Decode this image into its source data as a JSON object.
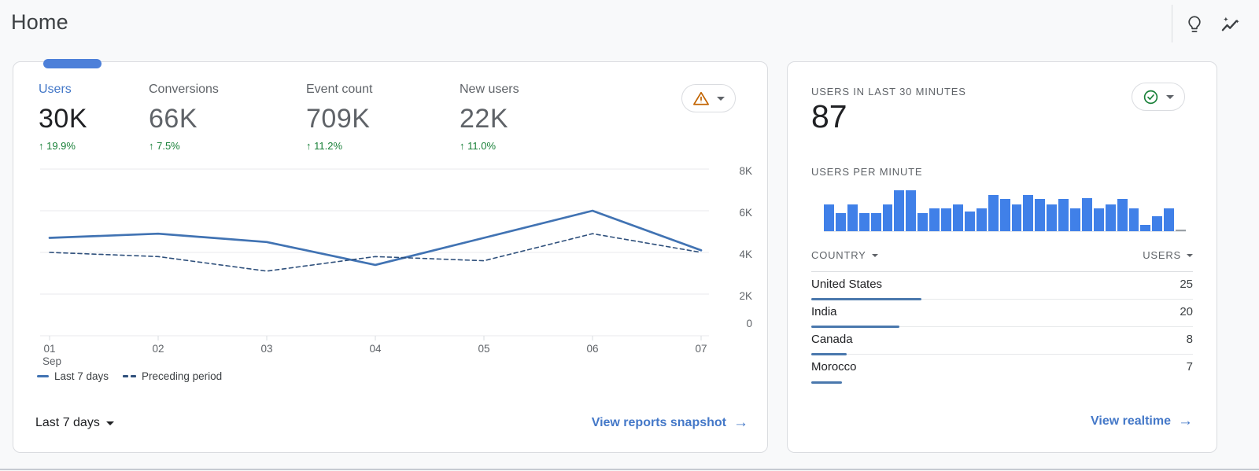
{
  "header": {
    "title": "Home",
    "icons": [
      {
        "name": "lightbulb-icon"
      },
      {
        "name": "insights-chart-icon"
      }
    ]
  },
  "colors": {
    "accent_blue": "#4478c8",
    "active_tab_indicator": "#4d80d9",
    "line_solid": "#4173b3",
    "line_dashed": "#2f507c",
    "realtime_bar": "#4080e8",
    "zero_bar": "#9aa0a6",
    "table_bar": "#4a78ad",
    "delta_green": "#188038",
    "warning_orange": "#c26401",
    "check_green": "#188038",
    "grid": "#e8eaec",
    "axis_text": "#5f6368"
  },
  "overview_card": {
    "metrics": [
      {
        "label": "Users",
        "value": "30K",
        "delta": "↑ 19.9%",
        "active": true
      },
      {
        "label": "Conversions",
        "value": "66K",
        "delta": "↑ 7.5%",
        "active": false
      },
      {
        "label": "Event count",
        "value": "709K",
        "delta": "↑ 11.2%",
        "active": false
      },
      {
        "label": "New users",
        "value": "22K",
        "delta": "↑ 11.0%",
        "active": false
      }
    ],
    "chart_data": {
      "type": "line",
      "categories": [
        "01",
        "02",
        "03",
        "04",
        "05",
        "06",
        "07"
      ],
      "month_label": "Sep",
      "series": [
        {
          "name": "Last 7 days",
          "style": "solid",
          "values": [
            4700,
            4900,
            4500,
            3400,
            4700,
            6000,
            4100
          ]
        },
        {
          "name": "Preceding period",
          "style": "dashed",
          "values": [
            4000,
            3800,
            3100,
            3800,
            3600,
            4900,
            4000
          ]
        }
      ],
      "ylim": [
        0,
        8000
      ],
      "yticks": [
        8000,
        6000,
        4000,
        2000,
        0
      ],
      "ytick_labels": [
        "8K",
        "6K",
        "4K",
        "2K",
        "0"
      ],
      "grid": "horizontal",
      "legend_position": "bottom-left"
    },
    "legend": [
      {
        "label": "Last 7 days",
        "style": "solid"
      },
      {
        "label": "Preceding period",
        "style": "dashed"
      }
    ],
    "date_range_label": "Last 7 days",
    "footer_link_label": "View reports snapshot",
    "footer_link_arrow": "→"
  },
  "realtime_card": {
    "title": "USERS IN LAST 30 MINUTES",
    "value": "87",
    "per_minute_title": "USERS PER MINUTE",
    "chart_data": {
      "type": "bar",
      "title": "USERS PER MINUTE",
      "bar_heights_pct": [
        65,
        45,
        65,
        45,
        45,
        65,
        100,
        100,
        45,
        55,
        55,
        65,
        48,
        56,
        88,
        78,
        66,
        88,
        78,
        66,
        78,
        55,
        80,
        55,
        66,
        78,
        55,
        16,
        37,
        55,
        0
      ],
      "ylim_pct": [
        0,
        100
      ]
    },
    "table": {
      "country_header": "COUNTRY",
      "users_header": "USERS",
      "max_users": 25,
      "rows": [
        {
          "country": "United States",
          "users": "25"
        },
        {
          "country": "India",
          "users": "20"
        },
        {
          "country": "Canada",
          "users": "8"
        },
        {
          "country": "Morocco",
          "users": "7"
        }
      ]
    },
    "footer_link_label": "View realtime",
    "footer_link_arrow": "→"
  }
}
